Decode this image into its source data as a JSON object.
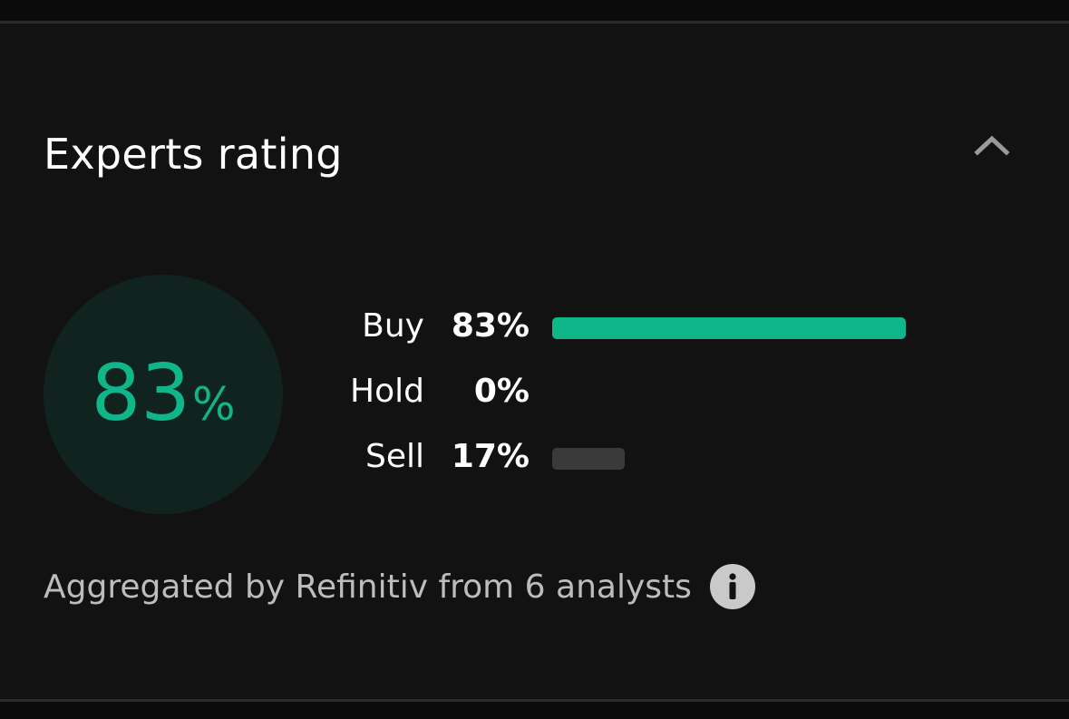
{
  "panel": {
    "title": "Experts rating",
    "collapse_icon": "chevron-up-icon"
  },
  "summary": {
    "value": "83",
    "unit": "%",
    "buy_fraction": 0.83,
    "accent_color": "#0fb689",
    "circle_bg": "#11231f"
  },
  "ratings": [
    {
      "label": "Buy",
      "value": "83%",
      "fraction": 0.83,
      "color": "#0fb689"
    },
    {
      "label": "Hold",
      "value": "0%",
      "fraction": 0.0,
      "color": "#3a3a3a"
    },
    {
      "label": "Sell",
      "value": "17%",
      "fraction": 0.17,
      "color": "#3a3a3a"
    }
  ],
  "footer": {
    "text": "Aggregated by Refinitiv from 6 analysts",
    "info_icon": "info-icon"
  }
}
